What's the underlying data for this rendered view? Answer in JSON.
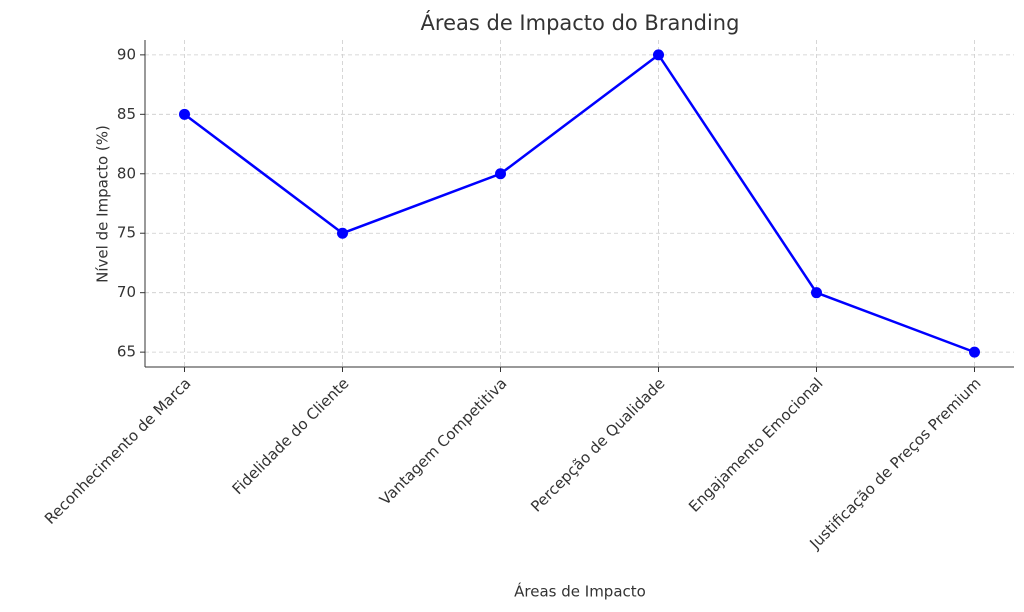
{
  "chart_data": {
    "type": "line",
    "title": "Áreas de Impacto do Branding",
    "x_label": "Áreas de Impacto",
    "y_label": "Nível de Impacto (%)",
    "categories": [
      "Reconhecimento de Marca",
      "Fidelidade do Cliente",
      "Vantagem Competitiva",
      "Percepção de Qualidade",
      "Engajamento Emocional",
      "Justificação de Preços Premium"
    ],
    "series": [
      {
        "name": "Nível de Impacto",
        "color": "#0000ff",
        "values": [
          85,
          75,
          80,
          90,
          70,
          65
        ]
      }
    ],
    "ylim": [
      63.75,
      91.25
    ],
    "yticks": [
      65,
      70,
      75,
      80,
      85,
      90
    ],
    "grid": true
  }
}
